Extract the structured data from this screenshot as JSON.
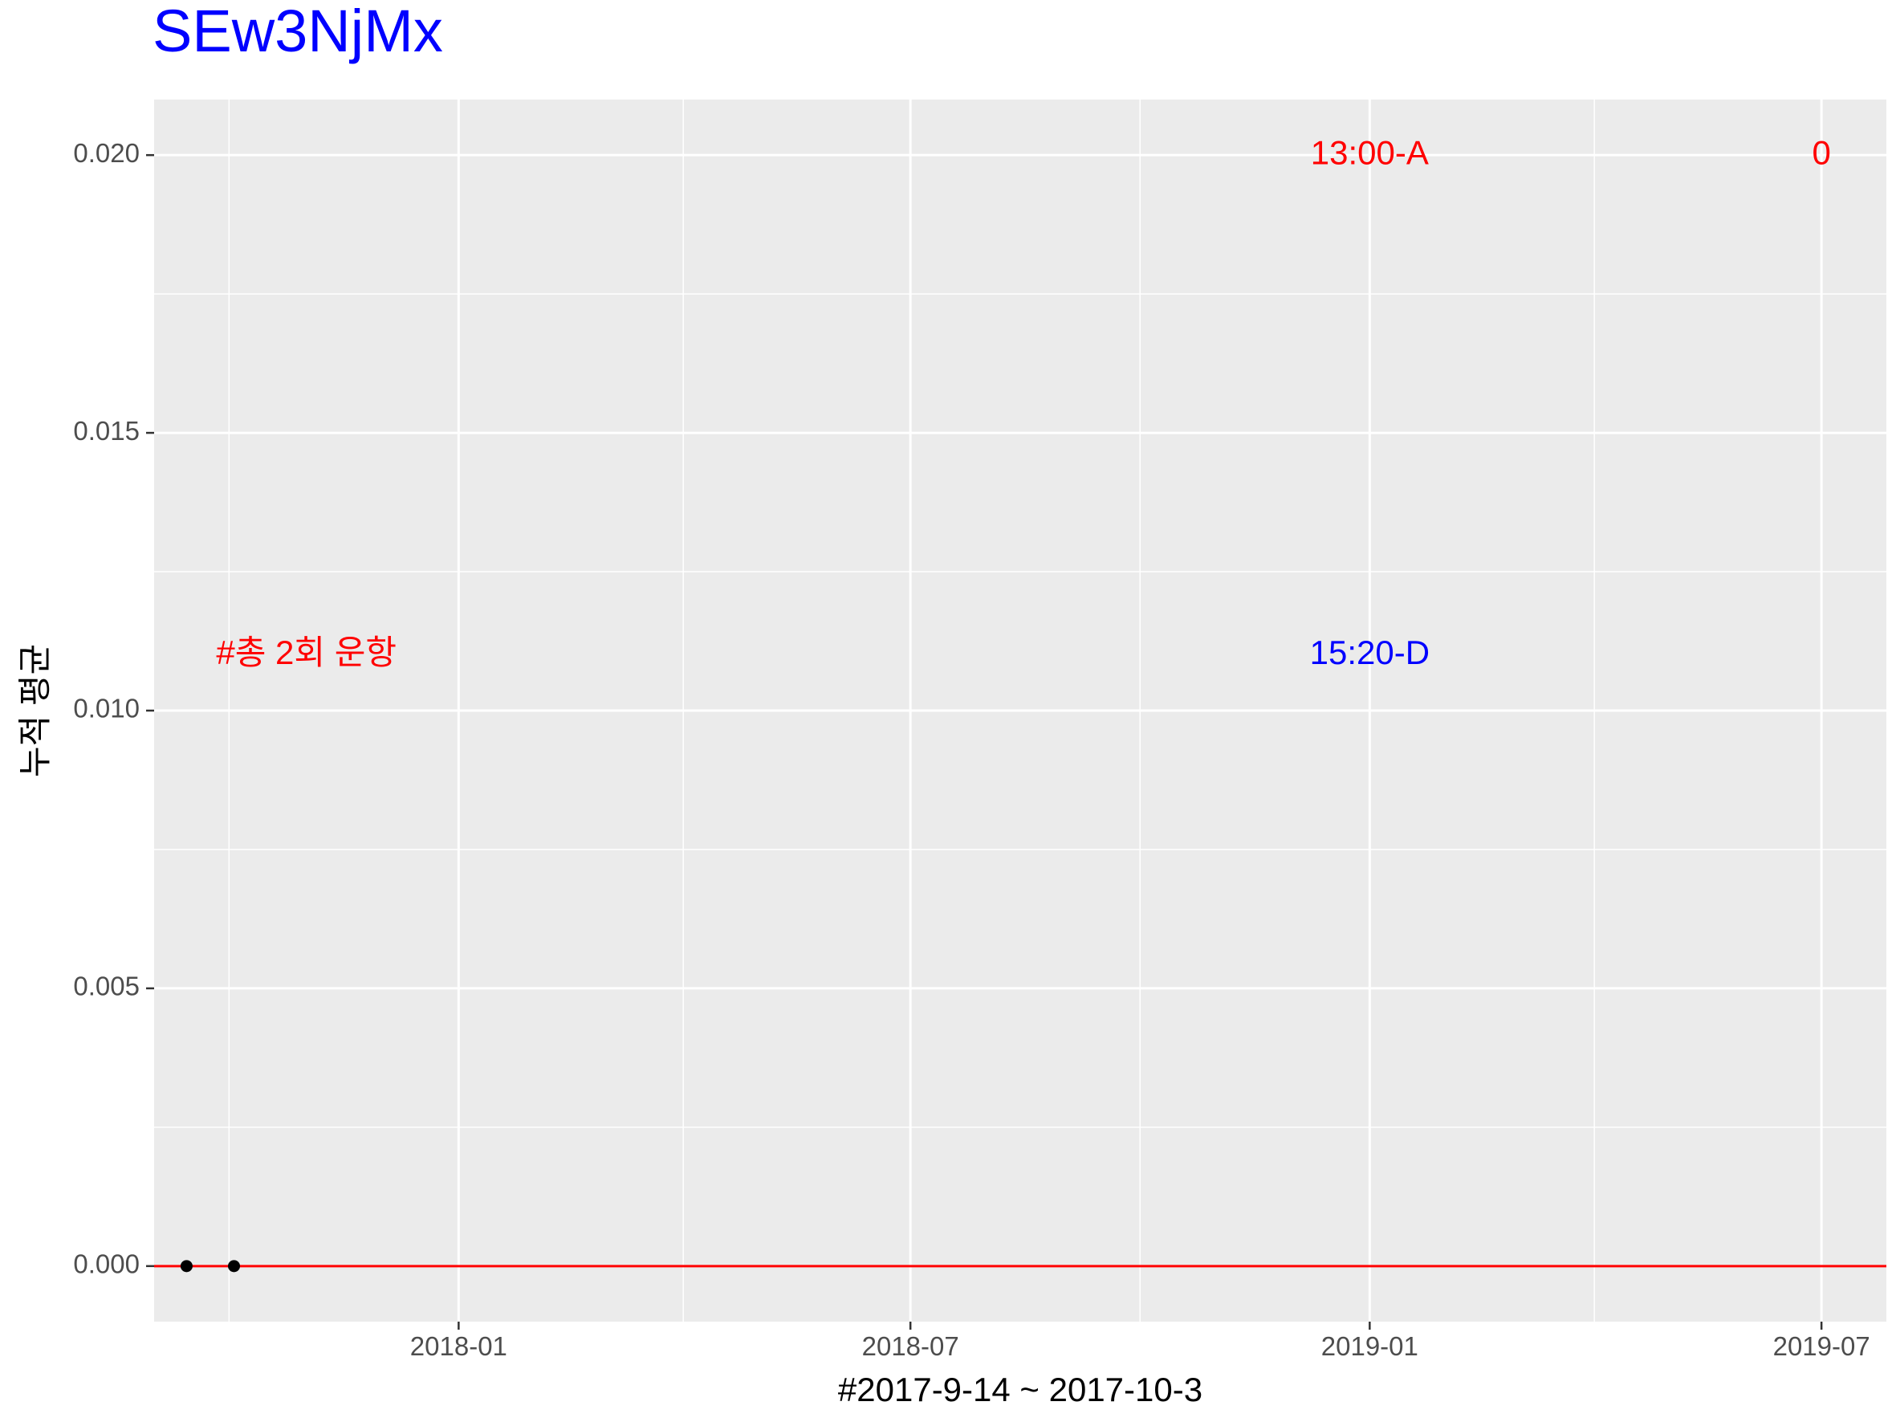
{
  "chart_data": {
    "type": "scatter",
    "title": "SEw3NjMx",
    "title_color": "#0000ff",
    "xlabel": "#2017-9-14 ~ 2017-10-3",
    "ylabel": "누적 평균",
    "xlim": [
      "2017-09-01",
      "2019-07-27"
    ],
    "ylim": [
      -0.001,
      0.021
    ],
    "x_ticks": [
      {
        "value": "2018-01-01",
        "label": "2018-01"
      },
      {
        "value": "2018-07-01",
        "label": "2018-07"
      },
      {
        "value": "2019-01-01",
        "label": "2019-01"
      },
      {
        "value": "2019-07-01",
        "label": "2019-07"
      }
    ],
    "x_minor_ticks": [
      "2017-10-01",
      "2018-04-01",
      "2018-10-01",
      "2019-04-01"
    ],
    "y_ticks": [
      {
        "value": 0.0,
        "label": "0.000"
      },
      {
        "value": 0.005,
        "label": "0.005"
      },
      {
        "value": 0.01,
        "label": "0.010"
      },
      {
        "value": 0.015,
        "label": "0.015"
      },
      {
        "value": 0.02,
        "label": "0.020"
      }
    ],
    "points": [
      {
        "x": "2017-09-14",
        "y": 0.0
      },
      {
        "x": "2017-10-03",
        "y": 0.0
      }
    ],
    "hline": {
      "y": 0.0,
      "color": "#ff0000"
    },
    "annotations": [
      {
        "text": "#총 2회 운항",
        "x": "2017-11-01",
        "y": 0.011,
        "color": "#ff0000"
      },
      {
        "text": "13:00-A",
        "x": "2019-01-01",
        "y": 0.02,
        "color": "#ff0000"
      },
      {
        "text": "0",
        "x": "2019-07-01",
        "y": 0.02,
        "color": "#ff0000"
      },
      {
        "text": "15:20-D",
        "x": "2019-01-01",
        "y": 0.011,
        "color": "#0000ff"
      }
    ],
    "grid": true,
    "panel_background": "#ebebeb",
    "grid_color": "#ffffff",
    "point_color": "#000000"
  }
}
